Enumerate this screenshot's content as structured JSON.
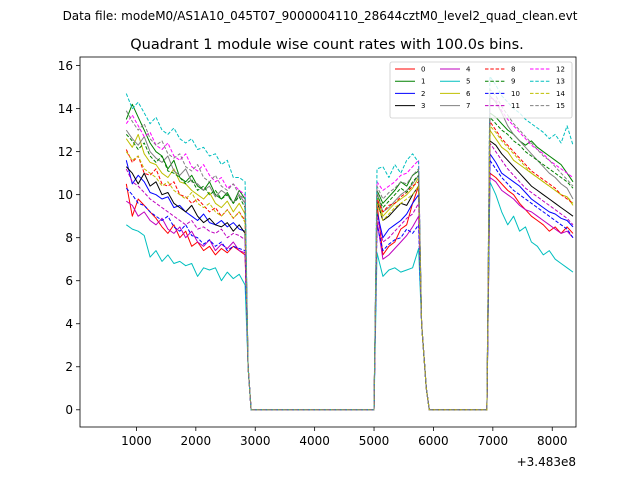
{
  "chart_data": {
    "type": "line",
    "suptitle": "Data file: modeM0/AS1A10_045T07_9000004110_28644cztM0_level2_quad_clean.evt",
    "title": "Quadrant 1 module wise count rates with 100.0s bins.",
    "xlabel": "",
    "ylabel": "",
    "x_offset_label": "+3.483e8",
    "xlim": [
      50,
      8400
    ],
    "ylim": [
      -0.8,
      16.4
    ],
    "xticks": [
      1000,
      2000,
      3000,
      4000,
      5000,
      6000,
      7000,
      8000
    ],
    "xtick_labels": [
      "1000",
      "2000",
      "3000",
      "4000",
      "5000",
      "6000",
      "7000",
      "8000"
    ],
    "yticks": [
      0,
      2,
      4,
      6,
      8,
      10,
      12,
      14,
      16
    ],
    "ytick_labels": [
      "0",
      "2",
      "4",
      "6",
      "8",
      "10",
      "12",
      "14",
      "16"
    ],
    "legend_location": "upper right",
    "legend_columns": 4,
    "segments": [
      {
        "start": 830,
        "end": 2830,
        "step": 100
      },
      {
        "start": 5050,
        "end": 5750,
        "step": 100
      },
      {
        "start": 6950,
        "end": 8350,
        "step": 100
      }
    ],
    "gaps": [
      {
        "x": [
          2880,
          2930,
          5000
        ],
        "y": [
          2.0,
          0.0,
          0.0
        ]
      },
      {
        "x": [
          5800,
          5880,
          5930,
          6900
        ],
        "y": [
          4.0,
          1.0,
          0.0,
          0.0
        ]
      }
    ],
    "series": [
      {
        "name": "0",
        "color": "#ff0000",
        "dash": "solid",
        "segments": [
          [
            10.5,
            9.0,
            9.8,
            9.5,
            9.2,
            8.9,
            8.5,
            8.2,
            8.6,
            8.0,
            8.3,
            7.6,
            7.8,
            7.4,
            7.6,
            7.2,
            7.5,
            7.3,
            7.6,
            7.4,
            7.2
          ],
          [
            9.6,
            7.2,
            7.6,
            7.8,
            8.4,
            8.6,
            9.6,
            10.4
          ],
          [
            11.0,
            10.8,
            10.5,
            10.2,
            10.0,
            9.6,
            9.3,
            9.0,
            8.8,
            8.6,
            8.3,
            8.5,
            8.2,
            8.5,
            8.2
          ]
        ]
      },
      {
        "name": "1",
        "color": "#008000",
        "dash": "solid",
        "segments": [
          [
            13.5,
            14.2,
            13.6,
            13.0,
            12.4,
            12.0,
            11.8,
            11.2,
            11.6,
            10.8,
            10.6,
            10.9,
            10.4,
            10.2,
            10.6,
            10.0,
            9.8,
            10.1,
            9.6,
            10.2,
            9.8
          ],
          [
            10.2,
            9.6,
            9.9,
            10.2,
            10.6,
            10.4,
            10.9,
            11.1
          ],
          [
            13.8,
            13.6,
            13.3,
            13.0,
            12.8,
            12.5,
            12.3,
            12.5,
            12.2,
            12.0,
            11.8,
            11.6,
            11.4,
            11.0,
            10.6
          ]
        ]
      },
      {
        "name": "2",
        "color": "#0000ff",
        "dash": "solid",
        "segments": [
          [
            11.6,
            10.5,
            10.9,
            10.6,
            10.1,
            10.0,
            9.8,
            9.9,
            9.4,
            9.5,
            9.2,
            9.0,
            8.8,
            9.1,
            8.7,
            8.6,
            8.8,
            8.5,
            8.7,
            8.4,
            8.3
          ],
          [
            9.2,
            8.0,
            8.4,
            8.6,
            8.8,
            9.1,
            9.6,
            10.0
          ],
          [
            11.9,
            11.5,
            11.0,
            10.8,
            10.6,
            10.4,
            10.1,
            9.8,
            9.6,
            9.4,
            9.2,
            9.1,
            8.9,
            8.8,
            8.5
          ]
        ]
      },
      {
        "name": "3",
        "color": "#000000",
        "dash": "solid",
        "segments": [
          [
            11.3,
            11.0,
            10.5,
            11.0,
            10.4,
            10.6,
            10.0,
            10.1,
            9.6,
            9.4,
            9.2,
            9.5,
            9.0,
            8.7,
            8.9,
            8.6,
            8.5,
            8.7,
            8.3,
            8.6,
            8.2
          ],
          [
            9.7,
            8.8,
            9.0,
            9.3,
            9.6,
            9.5,
            10.0,
            10.4
          ],
          [
            12.5,
            12.3,
            11.9,
            11.6,
            11.3,
            11.0,
            10.7,
            10.4,
            10.2,
            10.0,
            9.8,
            9.6,
            9.4,
            9.2,
            9.0
          ]
        ]
      },
      {
        "name": "4",
        "color": "#bf00bf",
        "dash": "solid",
        "segments": [
          [
            9.7,
            9.5,
            9.0,
            9.2,
            8.8,
            8.6,
            8.9,
            8.4,
            8.2,
            8.5,
            8.0,
            8.3,
            7.8,
            7.6,
            7.9,
            7.4,
            7.7,
            7.5,
            7.8,
            7.4,
            7.3
          ],
          [
            8.8,
            7.0,
            7.2,
            7.5,
            7.8,
            8.1,
            8.5,
            9.0
          ],
          [
            10.8,
            10.6,
            10.2,
            10.0,
            9.8,
            9.5,
            9.3,
            9.2,
            9.0,
            8.8,
            8.6,
            8.4,
            8.2,
            8.3,
            8.0
          ]
        ]
      },
      {
        "name": "5",
        "color": "#00bfbf",
        "dash": "solid",
        "segments": [
          [
            8.6,
            8.4,
            8.3,
            8.1,
            7.1,
            7.4,
            6.9,
            7.2,
            6.8,
            6.9,
            6.7,
            6.8,
            6.2,
            6.6,
            6.5,
            6.6,
            6.0,
            6.4,
            6.1,
            6.3,
            5.8
          ],
          [
            7.3,
            6.2,
            6.5,
            6.6,
            6.4,
            6.5,
            6.6,
            7.5
          ],
          [
            10.6,
            10.0,
            9.2,
            8.6,
            9.0,
            8.3,
            8.5,
            7.8,
            7.6,
            7.2,
            7.4,
            7.0,
            6.8,
            6.6,
            6.4
          ]
        ]
      },
      {
        "name": "6",
        "color": "#bfbf00",
        "dash": "solid",
        "segments": [
          [
            12.6,
            12.2,
            12.8,
            11.9,
            11.5,
            11.4,
            11.0,
            10.8,
            11.2,
            10.6,
            10.5,
            10.2,
            10.0,
            9.8,
            10.1,
            9.6,
            9.4,
            9.7,
            9.2,
            9.6,
            9.1
          ],
          [
            9.9,
            9.0,
            9.3,
            9.6,
            9.8,
            10.0,
            10.3,
            10.8
          ],
          [
            13.0,
            12.6,
            12.2,
            12.0,
            11.6,
            11.4,
            11.2,
            11.0,
            10.8,
            10.6,
            10.4,
            10.2,
            10.0,
            9.9,
            9.5
          ]
        ]
      },
      {
        "name": "7",
        "color": "#808080",
        "dash": "solid",
        "segments": [
          [
            13.0,
            12.6,
            12.3,
            12.7,
            12.0,
            11.7,
            11.5,
            11.8,
            11.1,
            10.9,
            11.2,
            10.6,
            10.5,
            10.2,
            10.4,
            9.9,
            10.2,
            10.0,
            9.6,
            10.0,
            9.6
          ],
          [
            10.1,
            9.2,
            9.4,
            9.7,
            10.0,
            10.2,
            10.5,
            10.9
          ],
          [
            14.6,
            14.3,
            13.8,
            13.2,
            12.8,
            12.5,
            12.2,
            11.9,
            11.6,
            11.3,
            11.0,
            10.8,
            10.5,
            10.3,
            9.8
          ]
        ]
      },
      {
        "name": "8",
        "color": "#ff0000",
        "dash": "dashed",
        "segments": [
          [
            12.1,
            11.5,
            11.8,
            11.0,
            10.9,
            11.2,
            10.5,
            10.4,
            10.6,
            10.0,
            9.9,
            9.6,
            9.8,
            9.5,
            9.2,
            9.4,
            9.0,
            9.3,
            8.9,
            9.2,
            8.8
          ],
          [
            9.8,
            9.2,
            9.5,
            9.6,
            9.9,
            10.1,
            10.4,
            10.6
          ],
          [
            13.4,
            13.0,
            12.6,
            12.3,
            12.0,
            11.7,
            11.4,
            11.1,
            10.9,
            10.7,
            10.5,
            10.3,
            10.0,
            9.8,
            9.6
          ]
        ]
      },
      {
        "name": "9",
        "color": "#008000",
        "dash": "dashed",
        "segments": [
          [
            12.8,
            12.5,
            12.1,
            12.4,
            11.8,
            11.5,
            11.8,
            11.1,
            11.0,
            10.8,
            10.5,
            10.7,
            10.2,
            10.4,
            10.0,
            10.2,
            9.8,
            10.0,
            9.6,
            9.9,
            9.4
          ],
          [
            10.0,
            9.4,
            9.7,
            10.0,
            10.3,
            10.1,
            10.6,
            10.9
          ],
          [
            13.6,
            13.3,
            13.0,
            12.8,
            12.5,
            12.3,
            12.0,
            11.8,
            11.6,
            11.4,
            11.2,
            11.0,
            10.8,
            10.6,
            10.3
          ]
        ]
      },
      {
        "name": "10",
        "color": "#0000ff",
        "dash": "dashed",
        "segments": [
          [
            10.3,
            10.0,
            9.6,
            9.5,
            9.2,
            9.0,
            8.8,
            9.0,
            8.5,
            8.3,
            8.6,
            8.1,
            8.0,
            7.7,
            7.9,
            7.6,
            7.8,
            7.4,
            7.6,
            7.5,
            7.4
          ],
          [
            8.6,
            7.4,
            7.7,
            7.9,
            8.0,
            8.4,
            8.2,
            8.6
          ],
          [
            11.6,
            11.2,
            10.8,
            10.5,
            10.2,
            10.0,
            9.8,
            9.6,
            9.4,
            9.2,
            9.0,
            8.8,
            8.6,
            8.4,
            8.0
          ]
        ]
      },
      {
        "name": "11",
        "color": "#bf00bf",
        "dash": "dashed",
        "segments": [
          [
            11.2,
            10.6,
            10.4,
            10.1,
            9.8,
            9.6,
            9.4,
            9.2,
            9.0,
            8.8,
            8.6,
            8.8,
            8.4,
            8.5,
            8.3,
            8.2,
            8.4,
            8.0,
            8.2,
            8.1,
            7.9
          ],
          [
            9.0,
            7.8,
            8.0,
            8.3,
            8.6,
            8.9,
            9.1,
            9.6
          ],
          [
            12.4,
            12.0,
            11.6,
            11.2,
            10.9,
            10.6,
            10.3,
            10.1,
            9.9,
            9.7,
            9.5,
            9.3,
            9.1,
            8.9,
            8.6
          ]
        ]
      },
      {
        "name": "12",
        "color": "#ff00ff",
        "dash": "dashed",
        "segments": [
          [
            13.3,
            13.7,
            13.2,
            12.7,
            12.9,
            12.3,
            12.1,
            12.4,
            11.8,
            11.6,
            11.9,
            11.3,
            11.1,
            11.4,
            10.9,
            10.6,
            10.8,
            10.3,
            10.5,
            10.2,
            10.0
          ],
          [
            10.6,
            10.2,
            10.4,
            10.6,
            10.9,
            11.0,
            11.3,
            11.6
          ],
          [
            14.5,
            14.4,
            13.9,
            13.5,
            13.2,
            12.9,
            12.6,
            12.3,
            12.1,
            11.9,
            11.6,
            11.4,
            11.2,
            11.0,
            10.8
          ]
        ]
      },
      {
        "name": "13",
        "color": "#00bfbf",
        "dash": "dashed",
        "segments": [
          [
            14.7,
            14.0,
            14.3,
            13.8,
            13.3,
            13.6,
            13.0,
            12.8,
            13.1,
            12.6,
            12.4,
            12.6,
            12.1,
            12.2,
            11.8,
            11.9,
            11.4,
            11.6,
            10.8,
            10.8,
            10.6
          ],
          [
            11.2,
            11.3,
            10.8,
            11.4,
            11.0,
            11.6,
            11.9,
            11.5
          ],
          [
            15.5,
            15.1,
            14.6,
            14.3,
            14.0,
            13.8,
            13.5,
            13.3,
            13.1,
            12.9,
            12.6,
            12.8,
            12.4,
            13.2,
            12.3
          ]
        ]
      },
      {
        "name": "14",
        "color": "#bfbf00",
        "dash": "dashed",
        "segments": [
          [
            12.0,
            11.6,
            11.8,
            11.2,
            11.0,
            10.8,
            10.4,
            10.6,
            10.2,
            10.0,
            9.8,
            10.1,
            9.6,
            9.4,
            9.6,
            9.2,
            9.0,
            9.3,
            8.9,
            9.2,
            8.7
          ],
          [
            9.6,
            8.8,
            9.1,
            9.4,
            9.6,
            9.8,
            10.0,
            10.4
          ],
          [
            13.2,
            12.9,
            12.5,
            12.2,
            11.9,
            11.6,
            11.3,
            11.0,
            10.8,
            10.6,
            10.4,
            10.2,
            10.0,
            9.9,
            9.6
          ]
        ]
      },
      {
        "name": "15",
        "color": "#808080",
        "dash": "dashed",
        "segments": [
          [
            13.9,
            13.4,
            13.0,
            13.3,
            12.6,
            12.3,
            12.5,
            11.9,
            11.7,
            11.9,
            11.3,
            11.1,
            11.4,
            10.8,
            10.6,
            10.9,
            10.4,
            10.2,
            10.5,
            10.0,
            9.8
          ],
          [
            10.4,
            9.8,
            10.1,
            10.3,
            10.6,
            10.5,
            10.9,
            11.2
          ],
          [
            14.9,
            14.6,
            14.1,
            13.7,
            13.3,
            13.0,
            12.7,
            12.4,
            12.1,
            11.8,
            11.6,
            11.3,
            11.0,
            10.7,
            10.4
          ]
        ]
      }
    ]
  }
}
